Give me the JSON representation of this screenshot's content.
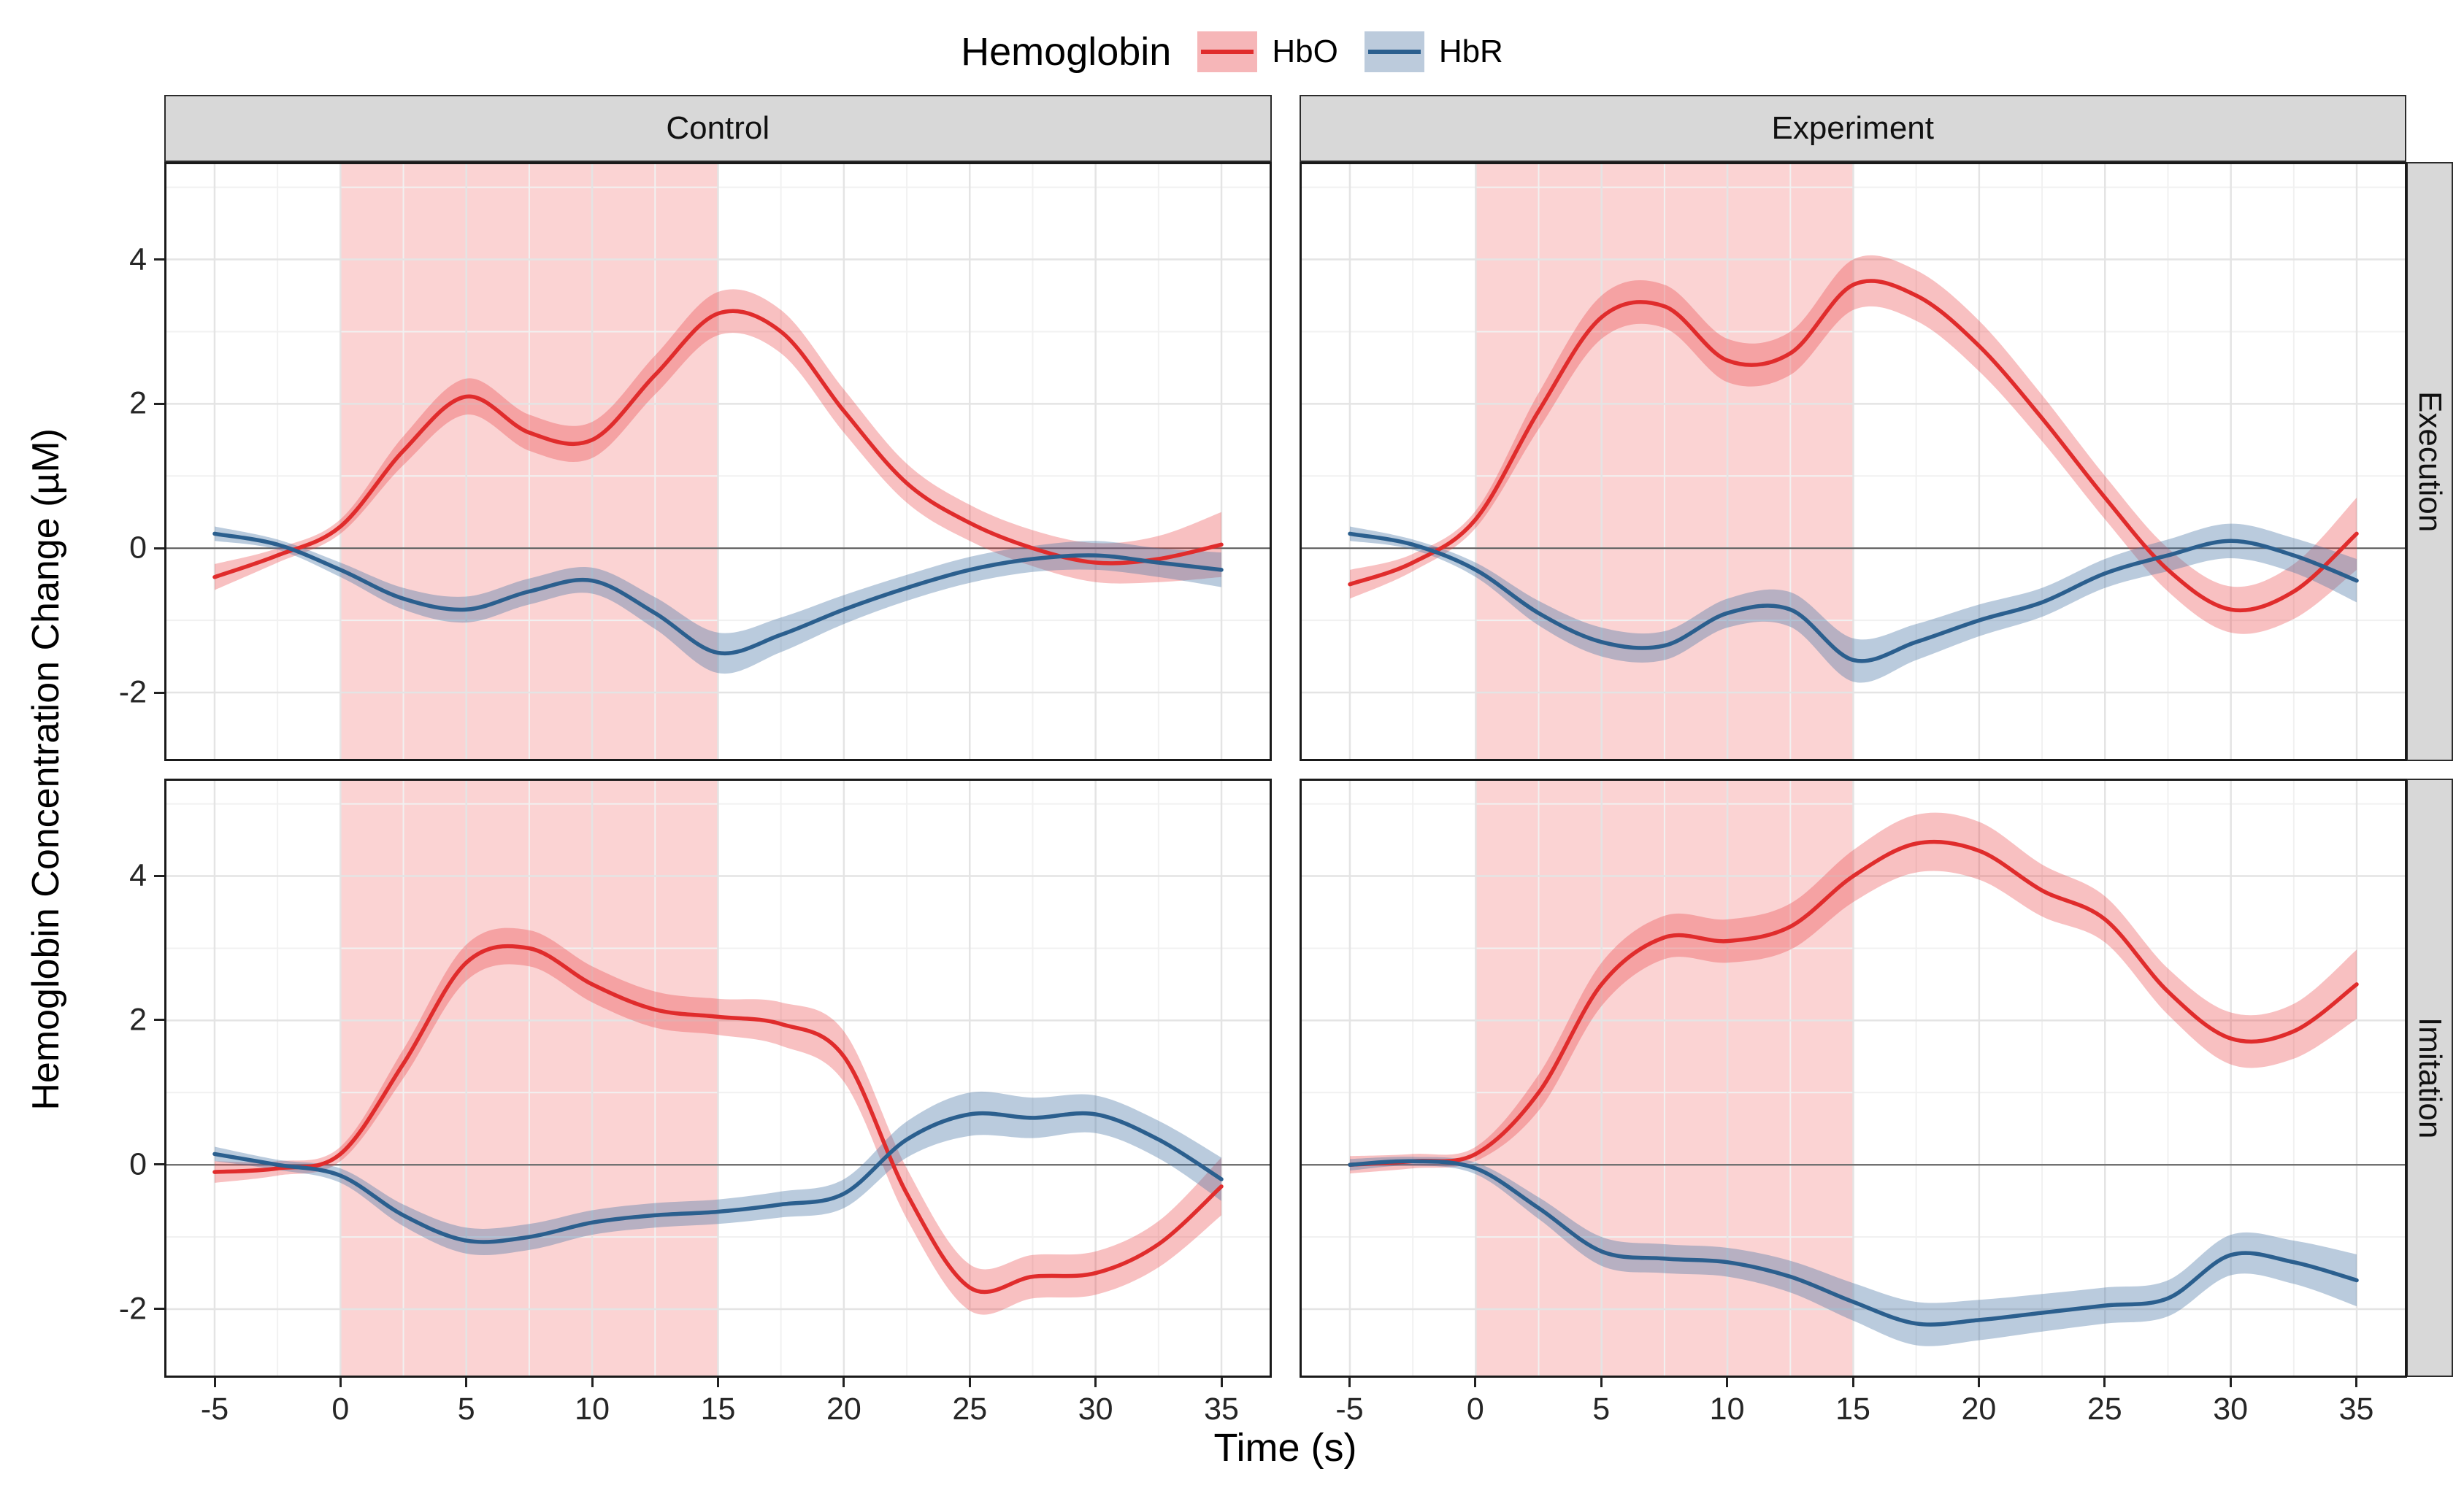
{
  "legend": {
    "title": "Hemoglobin",
    "items": [
      {
        "label": "HbO",
        "line_color": "#E02C2C",
        "fill_color": "#F6B6B8"
      },
      {
        "label": "HbR",
        "line_color": "#2B5F8E",
        "fill_color": "#BCCBDC"
      }
    ]
  },
  "axes": {
    "x_title": "Time (s)",
    "y_title": "Hemoglobin Concentration Change (µM)"
  },
  "chart_data": {
    "type": "line",
    "facets": {
      "cols": [
        "Control",
        "Experiment"
      ],
      "rows": [
        "Execution",
        "Imitation"
      ]
    },
    "x_label": "Time (s)",
    "y_label": "Hemoglobin Concentration Change (µM)",
    "x": [
      -5,
      -2.5,
      0,
      2.5,
      5,
      7.5,
      10,
      12.5,
      15,
      17.5,
      20,
      22.5,
      25,
      27.5,
      30,
      32.5,
      35
    ],
    "xlim": [
      -7,
      37
    ],
    "ylim": [
      -2.95,
      5.35
    ],
    "x_ticks": [
      -5,
      0,
      5,
      10,
      15,
      20,
      25,
      30,
      35
    ],
    "x_minor": [
      -2.5,
      2.5,
      7.5,
      12.5,
      17.5,
      22.5,
      27.5,
      32.5
    ],
    "y_ticks": [
      -2,
      0,
      2,
      4
    ],
    "y_minor": [
      -1,
      1,
      3,
      5
    ],
    "stim_window": [
      0,
      15
    ],
    "stim_fill": "#F25C5C",
    "stim_opacity": 0.27,
    "zero_line_color": "#5a5a5a",
    "grid_major_color": "#e4e4e4",
    "grid_minor_color": "#f1f1f1",
    "series_style": {
      "HbO": {
        "line": "#E02C2C",
        "ribbon": "#EA3B3F",
        "ribbon_opacity": 0.32
      },
      "HbR": {
        "line": "#2B5F8E",
        "ribbon": "#4A76A5",
        "ribbon_opacity": 0.38
      }
    },
    "panels": [
      {
        "col": "Control",
        "row": "Execution",
        "series": [
          {
            "name": "HbO",
            "y": [
              -0.4,
              -0.1,
              0.3,
              1.35,
              2.1,
              1.6,
              1.5,
              2.4,
              3.25,
              3.0,
              1.9,
              0.9,
              0.35,
              0.0,
              -0.2,
              -0.15,
              0.05
            ],
            "ci": [
              0.18,
              0.1,
              0.1,
              0.2,
              0.25,
              0.25,
              0.25,
              0.27,
              0.3,
              0.3,
              0.3,
              0.27,
              0.25,
              0.25,
              0.27,
              0.32,
              0.45
            ]
          },
          {
            "name": "HbR",
            "y": [
              0.2,
              0.05,
              -0.3,
              -0.7,
              -0.85,
              -0.6,
              -0.45,
              -0.9,
              -1.45,
              -1.2,
              -0.85,
              -0.55,
              -0.3,
              -0.15,
              -0.1,
              -0.2,
              -0.3
            ],
            "ci": [
              0.1,
              0.07,
              0.1,
              0.15,
              0.18,
              0.18,
              0.18,
              0.22,
              0.28,
              0.24,
              0.2,
              0.18,
              0.18,
              0.18,
              0.2,
              0.2,
              0.24
            ]
          }
        ]
      },
      {
        "col": "Experiment",
        "row": "Execution",
        "series": [
          {
            "name": "HbO",
            "y": [
              -0.5,
              -0.2,
              0.4,
              1.9,
              3.2,
              3.35,
              2.6,
              2.7,
              3.65,
              3.5,
              2.8,
              1.8,
              0.7,
              -0.3,
              -0.85,
              -0.6,
              0.2
            ],
            "ci": [
              0.2,
              0.12,
              0.12,
              0.25,
              0.3,
              0.3,
              0.3,
              0.3,
              0.35,
              0.35,
              0.35,
              0.32,
              0.3,
              0.3,
              0.32,
              0.38,
              0.5
            ]
          },
          {
            "name": "HbR",
            "y": [
              0.2,
              0.05,
              -0.3,
              -0.9,
              -1.3,
              -1.35,
              -0.9,
              -0.85,
              -1.55,
              -1.3,
              -1.0,
              -0.75,
              -0.35,
              -0.1,
              0.1,
              -0.1,
              -0.45
            ],
            "ci": [
              0.1,
              0.07,
              0.1,
              0.17,
              0.2,
              0.2,
              0.2,
              0.24,
              0.3,
              0.25,
              0.22,
              0.2,
              0.2,
              0.22,
              0.24,
              0.24,
              0.3
            ]
          }
        ]
      },
      {
        "col": "Control",
        "row": "Imitation",
        "series": [
          {
            "name": "HbO",
            "y": [
              -0.1,
              -0.05,
              0.15,
              1.4,
              2.8,
              3.0,
              2.5,
              2.15,
              2.05,
              1.95,
              1.5,
              -0.4,
              -1.7,
              -1.55,
              -1.5,
              -1.1,
              -0.3
            ],
            "ci": [
              0.15,
              0.1,
              0.1,
              0.2,
              0.25,
              0.25,
              0.25,
              0.25,
              0.25,
              0.3,
              0.35,
              0.35,
              0.32,
              0.3,
              0.3,
              0.32,
              0.4
            ]
          },
          {
            "name": "HbR",
            "y": [
              0.15,
              0.0,
              -0.15,
              -0.7,
              -1.05,
              -1.0,
              -0.8,
              -0.7,
              -0.65,
              -0.55,
              -0.4,
              0.35,
              0.7,
              0.65,
              0.7,
              0.35,
              -0.2
            ],
            "ci": [
              0.1,
              0.07,
              0.1,
              0.15,
              0.18,
              0.18,
              0.17,
              0.17,
              0.17,
              0.18,
              0.2,
              0.25,
              0.3,
              0.28,
              0.26,
              0.26,
              0.3
            ]
          }
        ]
      },
      {
        "col": "Experiment",
        "row": "Imitation",
        "series": [
          {
            "name": "HbO",
            "y": [
              0.0,
              0.05,
              0.15,
              1.0,
              2.5,
              3.15,
              3.1,
              3.3,
              4.0,
              4.45,
              4.35,
              3.8,
              3.4,
              2.4,
              1.75,
              1.85,
              2.5
            ],
            "ci": [
              0.12,
              0.1,
              0.1,
              0.25,
              0.3,
              0.3,
              0.3,
              0.32,
              0.36,
              0.4,
              0.4,
              0.36,
              0.32,
              0.32,
              0.36,
              0.38,
              0.48
            ]
          },
          {
            "name": "HbR",
            "y": [
              0.0,
              0.05,
              -0.05,
              -0.6,
              -1.2,
              -1.3,
              -1.35,
              -1.55,
              -1.9,
              -2.2,
              -2.15,
              -2.05,
              -1.95,
              -1.85,
              -1.25,
              -1.35,
              -1.6
            ],
            "ci": [
              0.08,
              0.06,
              0.08,
              0.15,
              0.2,
              0.2,
              0.2,
              0.22,
              0.26,
              0.3,
              0.28,
              0.26,
              0.25,
              0.25,
              0.28,
              0.3,
              0.36
            ]
          }
        ]
      }
    ]
  }
}
